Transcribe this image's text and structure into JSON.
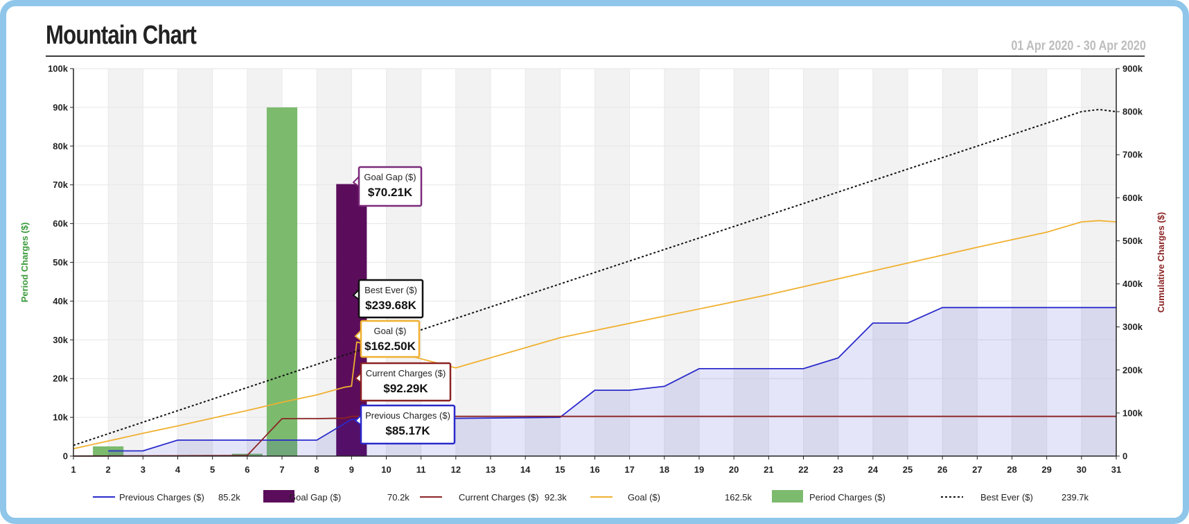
{
  "header": {
    "title": "Mountain Chart",
    "date_range": "01 Apr 2020 - 30 Apr 2020"
  },
  "chart_data": {
    "type": "bar+line",
    "categories": [
      1,
      2,
      3,
      4,
      5,
      6,
      7,
      8,
      9,
      10,
      11,
      12,
      13,
      14,
      15,
      16,
      17,
      18,
      19,
      20,
      21,
      22,
      23,
      24,
      25,
      26,
      27,
      28,
      29,
      30,
      31
    ],
    "left_axis": {
      "label": "Period Charges ($)",
      "range": [
        0,
        100000
      ],
      "ticks": [
        "0",
        "10k",
        "20k",
        "30k",
        "40k",
        "50k",
        "60k",
        "70k",
        "80k",
        "90k",
        "100k"
      ],
      "color": "#3a9a3a"
    },
    "right_axis": {
      "label": "Cumulative Charges ($)",
      "range": [
        0,
        900000
      ],
      "ticks": [
        "0",
        "100k",
        "200k",
        "300k",
        "400k",
        "500k",
        "600k",
        "700k",
        "800k",
        "900k"
      ],
      "color": "#8b2323"
    },
    "bars": [
      {
        "name": "Period Charges ($)",
        "color": "#7cba6e",
        "points": [
          [
            2,
            2500
          ],
          [
            6,
            600
          ],
          [
            7,
            90000
          ]
        ]
      },
      {
        "name": "Goal Gap ($)",
        "color": "#5b0d5b",
        "points": [
          [
            9,
            70210
          ]
        ]
      }
    ],
    "lines": [
      {
        "name": "Previous Charges ($)",
        "color": "#2a2acc",
        "fill": true,
        "axis": "right",
        "points": [
          [
            2,
            12000
          ],
          [
            3,
            12000
          ],
          [
            4,
            37000
          ],
          [
            8,
            37000
          ],
          [
            9,
            85170
          ],
          [
            15,
            90000
          ],
          [
            16,
            153000
          ],
          [
            17,
            153000
          ],
          [
            18,
            162000
          ],
          [
            19,
            203000
          ],
          [
            22,
            203000
          ],
          [
            23,
            228000
          ],
          [
            24,
            309000
          ],
          [
            25,
            309000
          ],
          [
            26,
            345000
          ],
          [
            29,
            345000
          ],
          [
            31,
            345000
          ]
        ]
      },
      {
        "name": "Current Charges ($)",
        "color": "#8b2323",
        "axis": "right",
        "points": [
          [
            1,
            0
          ],
          [
            6,
            1500
          ],
          [
            7,
            87000
          ],
          [
            8,
            87000
          ],
          [
            8.8,
            88000
          ],
          [
            9,
            92290
          ],
          [
            31,
            92290
          ]
        ]
      },
      {
        "name": "Goal ($)",
        "color": "#f0b030",
        "axis": "right",
        "points": [
          [
            1,
            17000
          ],
          [
            2,
            35000
          ],
          [
            3,
            53000
          ],
          [
            4,
            70000
          ],
          [
            5,
            88000
          ],
          [
            6,
            106000
          ],
          [
            7,
            125000
          ],
          [
            8,
            142000
          ],
          [
            8.8,
            160000
          ],
          [
            9,
            162500
          ],
          [
            9.15,
            265000
          ],
          [
            12,
            205000
          ],
          [
            15,
            275000
          ],
          [
            18,
            325000
          ],
          [
            21,
            375000
          ],
          [
            24,
            430000
          ],
          [
            27,
            485000
          ],
          [
            29,
            520000
          ],
          [
            30,
            544000
          ],
          [
            30.5,
            547000
          ],
          [
            31,
            544000
          ]
        ]
      },
      {
        "name": "Best Ever ($)",
        "color": "#111111",
        "dashed": true,
        "axis": "right",
        "points": [
          [
            1,
            25000
          ],
          [
            9,
            239680
          ],
          [
            30,
            800000
          ],
          [
            30.5,
            805000
          ],
          [
            31,
            800000
          ]
        ]
      }
    ],
    "tooltips": [
      {
        "label": "Goal Gap ($)",
        "value": "$70.21K",
        "color": "#7a2a7a"
      },
      {
        "label": "Best Ever ($)",
        "value": "$239.68K",
        "color": "#111111"
      },
      {
        "label": "Goal ($)",
        "value": "$162.50K",
        "color": "#f0b030"
      },
      {
        "label": "Current Charges ($)",
        "value": "$92.29K",
        "color": "#8b2323"
      },
      {
        "label": "Previous Charges ($)",
        "value": "$85.17K",
        "color": "#2a2acc"
      }
    ],
    "legend": [
      {
        "name": "Previous Charges ($)",
        "value": "85.2k",
        "swatch": "line",
        "color": "#2a2acc"
      },
      {
        "name": "Goal Gap ($)",
        "value": "70.2k",
        "swatch": "box",
        "color": "#5b0d5b"
      },
      {
        "name": "Current Charges ($)",
        "value": "92.3k",
        "swatch": "line",
        "color": "#8b2323"
      },
      {
        "name": "Goal ($)",
        "value": "162.5k",
        "swatch": "line",
        "color": "#f0b030"
      },
      {
        "name": "Period Charges ($)",
        "value": "",
        "swatch": "box",
        "color": "#7cba6e"
      },
      {
        "name": "Best Ever ($)",
        "value": "239.7k",
        "swatch": "dash",
        "color": "#111111"
      }
    ]
  }
}
